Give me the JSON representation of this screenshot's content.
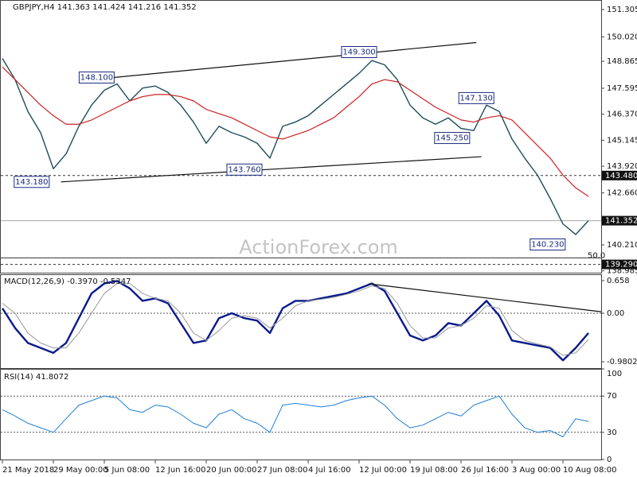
{
  "chart_data": [
    {
      "type": "line",
      "title": "GBPJPY,H4  141.363 141.424 141.216 141.352",
      "watermark": "ActionForex.com",
      "ylim": [
        138.9,
        151.68
      ],
      "yticks": [
        151.305,
        {
          "value": 150.02,
          "label": "150.020"
        },
        148.865,
        147.595,
        {
          "value": 146.37,
          "label": "146.370"
        },
        145.145,
        {
          "value": 143.92,
          "label": "143.920"
        },
        {
          "value": 142.66,
          "label": "142.660"
        },
        {
          "value": 140.21,
          "label": "140.210"
        },
        138.985
      ],
      "series": [
        {
          "name": "GBPJPY",
          "color": "#1e4d5a",
          "width": 1.4,
          "values": [
            149.0,
            148.0,
            146.5,
            145.5,
            143.8,
            144.5,
            145.8,
            146.8,
            147.5,
            147.8,
            147.0,
            147.6,
            147.7,
            147.4,
            146.8,
            146.0,
            145.0,
            145.8,
            145.5,
            145.3,
            145.0,
            144.3,
            145.8,
            146.0,
            146.3,
            146.8,
            147.3,
            147.8,
            148.3,
            148.9,
            148.7,
            148.0,
            146.8,
            146.2,
            145.9,
            146.2,
            145.7,
            145.6,
            146.8,
            146.5,
            145.2,
            144.3,
            143.5,
            142.4,
            141.2,
            140.7,
            141.35
          ]
        },
        {
          "name": "MA",
          "color": "#cc2222",
          "width": 1.2,
          "values": [
            148.6,
            148.0,
            147.4,
            146.8,
            146.3,
            145.9,
            145.9,
            146.1,
            146.4,
            146.7,
            147.0,
            147.2,
            147.3,
            147.3,
            147.2,
            147.0,
            146.6,
            146.4,
            146.2,
            145.9,
            145.6,
            145.3,
            145.2,
            145.4,
            145.6,
            145.9,
            146.2,
            146.7,
            147.2,
            147.8,
            148.0,
            147.9,
            147.5,
            147.1,
            146.7,
            146.4,
            146.1,
            146.0,
            146.2,
            146.3,
            146.1,
            145.5,
            144.9,
            144.3,
            143.5,
            142.9,
            142.5
          ]
        }
      ],
      "marked_levels": [
        {
          "value": 143.48,
          "label": "143.480",
          "style": "dashed"
        },
        {
          "value": 141.352,
          "style": "solid"
        },
        {
          "value": 139.29,
          "label": "139.290",
          "style": "dashed"
        }
      ],
      "fib": {
        "value": 50,
        "label": "50.0",
        "price": 139.6
      },
      "trendlines": [
        {
          "x": [
            6.1,
            37.2
          ],
          "y": [
            147.95,
            149.75
          ]
        },
        {
          "x": [
            4.6,
            37.6
          ],
          "y": [
            143.18,
            144.37
          ]
        }
      ],
      "annotations": [
        {
          "value": 148.1,
          "label": "148.100",
          "x": 7.4
        },
        {
          "value": 149.3,
          "label": "149.300",
          "x": 28
        },
        {
          "value": 143.18,
          "label": "143.180",
          "x": 2.3
        },
        {
          "value": 143.76,
          "label": "143.760",
          "x": 19
        },
        {
          "value": 147.13,
          "label": "147.130",
          "x": 37.2
        },
        {
          "value": 145.25,
          "label": "145.250",
          "x": 35.3
        },
        {
          "value": 140.23,
          "label": "140.230",
          "x": 42.8
        }
      ]
    },
    {
      "type": "line",
      "title": "MACD(12,26,9) -0.3970 -0.5347",
      "ylim": [
        -1.107,
        0.786
      ],
      "yticks": [
        0.658,
        {
          "value": 0,
          "label": "0.00"
        },
        -0.9802
      ],
      "grid_levels": [
        0
      ],
      "series": [
        {
          "name": "MACD",
          "color": "#0a1a8c",
          "width": 2.4,
          "values": [
            0.1,
            -0.3,
            -0.6,
            -0.7,
            -0.8,
            -0.6,
            -0.1,
            0.4,
            0.6,
            0.65,
            0.5,
            0.25,
            0.3,
            0.2,
            -0.2,
            -0.6,
            -0.55,
            -0.1,
            0.0,
            -0.1,
            -0.15,
            -0.4,
            0.1,
            0.25,
            0.25,
            0.3,
            0.35,
            0.4,
            0.5,
            0.6,
            0.45,
            0.0,
            -0.45,
            -0.55,
            -0.45,
            -0.2,
            -0.25,
            0.0,
            0.25,
            -0.05,
            -0.55,
            -0.6,
            -0.65,
            -0.7,
            -0.95,
            -0.7,
            -0.4
          ]
        },
        {
          "name": "Signal",
          "color": "#9a9a9a",
          "width": 1,
          "values": [
            0.2,
            0,
            -0.4,
            -0.6,
            -0.7,
            -0.7,
            -0.4,
            0.0,
            0.4,
            0.6,
            0.6,
            0.4,
            0.3,
            0.25,
            0.0,
            -0.4,
            -0.55,
            -0.35,
            -0.1,
            -0.05,
            -0.1,
            -0.3,
            -0.1,
            0.15,
            0.25,
            0.28,
            0.32,
            0.38,
            0.45,
            0.55,
            0.5,
            0.2,
            -0.25,
            -0.5,
            -0.5,
            -0.3,
            -0.25,
            -0.1,
            0.15,
            0.1,
            -0.35,
            -0.55,
            -0.62,
            -0.68,
            -0.85,
            -0.8,
            -0.53
          ]
        }
      ],
      "trendlines": [
        {
          "x": [
            28.75,
            47
          ],
          "y": [
            0.594,
            0.03
          ]
        }
      ]
    },
    {
      "type": "line",
      "title": "RSI(14) 41.8072",
      "ylim": [
        0,
        100
      ],
      "yticks": [
        100,
        70,
        30,
        0
      ],
      "grid_levels": [
        70,
        30
      ],
      "categories": [
        "21 May 2018",
        null,
        null,
        null,
        "29 May 00:00",
        null,
        null,
        null,
        "5 Jun 08:00",
        null,
        null,
        null,
        "12 Jun 16:00",
        null,
        null,
        null,
        "20 Jun 00:00",
        null,
        null,
        null,
        "27 Jun 08:00",
        null,
        null,
        null,
        "4 Jul 16:00",
        null,
        null,
        null,
        "12 Jul 00:00",
        null,
        null,
        null,
        "19 Jul 08:00",
        null,
        null,
        null,
        "26 Jul 16:00",
        null,
        null,
        null,
        "3 Aug 00:00",
        null,
        null,
        null,
        "10 Aug 08:00",
        null,
        null
      ],
      "series": [
        {
          "name": "RSI",
          "color": "#1e7fd6",
          "width": 1,
          "values": [
            55,
            48,
            40,
            35,
            30,
            45,
            60,
            65,
            70,
            68,
            55,
            52,
            60,
            58,
            50,
            40,
            35,
            50,
            55,
            45,
            40,
            30,
            60,
            62,
            60,
            58,
            60,
            65,
            68,
            70,
            60,
            45,
            35,
            38,
            45,
            52,
            48,
            60,
            65,
            70,
            50,
            35,
            30,
            32,
            25,
            45,
            42
          ]
        }
      ]
    }
  ]
}
